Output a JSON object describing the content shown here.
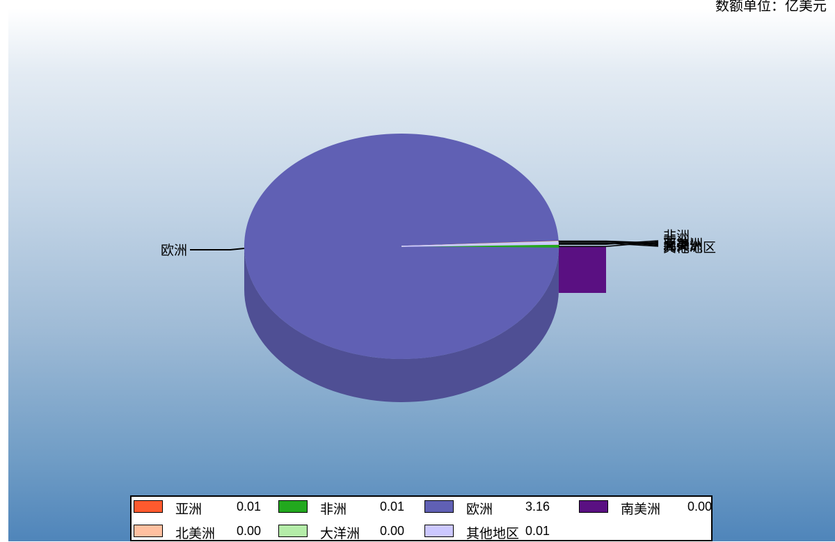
{
  "unit_label": "数额单位：亿美元",
  "chart_data": {
    "type": "pie",
    "title": "",
    "series": [
      {
        "name": "亚洲",
        "value": 0.01,
        "value_label": "0.01",
        "color": "#ff5a2e"
      },
      {
        "name": "非洲",
        "value": 0.01,
        "value_label": "0.01",
        "color": "#22a81e"
      },
      {
        "name": "欧洲",
        "value": 3.16,
        "value_label": "3.16",
        "color": "#6060b4"
      },
      {
        "name": "南美洲",
        "value": 0.0,
        "value_label": "0.00",
        "color": "#5a1082"
      },
      {
        "name": "北美洲",
        "value": 0.0,
        "value_label": "0.00",
        "color": "#ffc0a0"
      },
      {
        "name": "大洋洲",
        "value": 0.0,
        "value_label": "0.00",
        "color": "#b4eca8"
      },
      {
        "name": "其他地区",
        "value": 0.01,
        "value_label": "0.01",
        "color": "#ccc8ff"
      }
    ],
    "legend_position": "bottom",
    "style": "3d-pie"
  }
}
